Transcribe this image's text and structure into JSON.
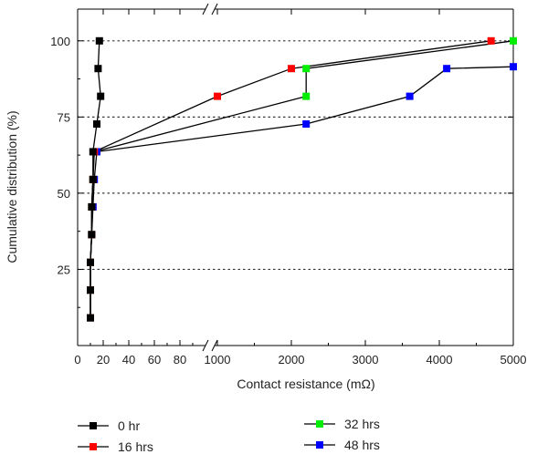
{
  "chart_data": {
    "type": "line",
    "title": "",
    "xlabel": "Contact resistance (mΩ)",
    "ylabel": "Cumulative distribution (%)",
    "x_axis": {
      "broken": true,
      "segments": [
        {
          "range": [
            0,
            100
          ],
          "ticks": [
            0,
            20,
            40,
            60,
            80
          ]
        },
        {
          "range": [
            1000,
            5000
          ],
          "ticks": [
            1000,
            2000,
            3000,
            4000,
            5000
          ]
        }
      ]
    },
    "ylim": [
      0,
      102
    ],
    "yticks": [
      25,
      50,
      75,
      100
    ],
    "grid": "horizontal dotted",
    "legend_placement": "bottom",
    "series": [
      {
        "name": "0 hr",
        "color": "#000000",
        "points": [
          [
            10,
            9.1
          ],
          [
            10,
            18.2
          ],
          [
            10,
            27.3
          ],
          [
            11,
            36.4
          ],
          [
            11,
            45.5
          ],
          [
            12,
            54.5
          ],
          [
            12,
            63.6
          ],
          [
            15,
            72.7
          ],
          [
            18,
            81.8
          ],
          [
            16,
            90.9
          ],
          [
            17,
            100
          ]
        ]
      },
      {
        "name": "16 hrs",
        "color": "#ff0000",
        "points": [
          [
            10,
            9.1
          ],
          [
            10,
            18.2
          ],
          [
            10,
            27.3
          ],
          [
            11,
            36.4
          ],
          [
            11,
            45.5
          ],
          [
            12,
            54.5
          ],
          [
            13,
            63.6
          ],
          [
            1000,
            81.8
          ],
          [
            2000,
            90.9
          ],
          [
            4700,
            100
          ]
        ]
      },
      {
        "name": "32 hrs",
        "color": "#00ee00",
        "points": [
          [
            10,
            9.1
          ],
          [
            10,
            18.2
          ],
          [
            10,
            27.3
          ],
          [
            11,
            36.4
          ],
          [
            11,
            45.5
          ],
          [
            12,
            54.5
          ],
          [
            13,
            63.6
          ],
          [
            2200,
            81.8
          ],
          [
            2200,
            90.9
          ],
          [
            5000,
            100
          ]
        ]
      },
      {
        "name": "48 hrs",
        "color": "#0000ff",
        "points": [
          [
            10,
            9.1
          ],
          [
            10,
            18.2
          ],
          [
            10,
            27.3
          ],
          [
            11,
            36.4
          ],
          [
            12,
            45.5
          ],
          [
            13,
            54.5
          ],
          [
            15,
            63.6
          ],
          [
            2200,
            72.7
          ],
          [
            3600,
            81.8
          ],
          [
            4100,
            90.9
          ],
          [
            5000,
            91.5
          ]
        ]
      }
    ]
  }
}
